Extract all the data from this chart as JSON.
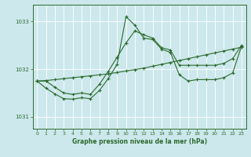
{
  "title": "Graphe pression niveau de la mer (hPa)",
  "bg_color": "#cce8ec",
  "grid_color": "#ffffff",
  "line_color": "#2d6a2d",
  "ylim": [
    1030.75,
    1033.35
  ],
  "yticks": [
    1031,
    1032,
    1033
  ],
  "xlim": [
    -0.5,
    23.5
  ],
  "xticks": [
    0,
    1,
    2,
    3,
    4,
    5,
    6,
    7,
    8,
    9,
    10,
    11,
    12,
    13,
    14,
    15,
    16,
    17,
    18,
    19,
    20,
    21,
    22,
    23
  ],
  "s1": [
    1031.75,
    1031.76,
    1031.78,
    1031.8,
    1031.82,
    1031.84,
    1031.86,
    1031.88,
    1031.9,
    1031.93,
    1031.96,
    1031.99,
    1032.02,
    1032.06,
    1032.1,
    1032.14,
    1032.18,
    1032.22,
    1032.26,
    1032.3,
    1032.34,
    1032.38,
    1032.42,
    1032.46
  ],
  "s2": [
    1031.75,
    1031.6,
    1031.48,
    1031.38,
    1031.37,
    1031.4,
    1031.38,
    1031.55,
    1031.8,
    1032.1,
    1033.1,
    1032.92,
    1032.65,
    1032.62,
    1032.42,
    1032.35,
    1031.88,
    1031.75,
    1031.78,
    1031.78,
    1031.78,
    1031.82,
    1031.92,
    1032.48
  ],
  "s3": [
    1031.75,
    1031.75,
    1031.62,
    1031.5,
    1031.47,
    1031.5,
    1031.47,
    1031.68,
    1031.95,
    1032.25,
    1032.55,
    1032.8,
    1032.72,
    1032.65,
    1032.45,
    1032.4,
    1032.08,
    1032.08,
    1032.08,
    1032.08,
    1032.08,
    1032.12,
    1032.22,
    1032.5
  ]
}
